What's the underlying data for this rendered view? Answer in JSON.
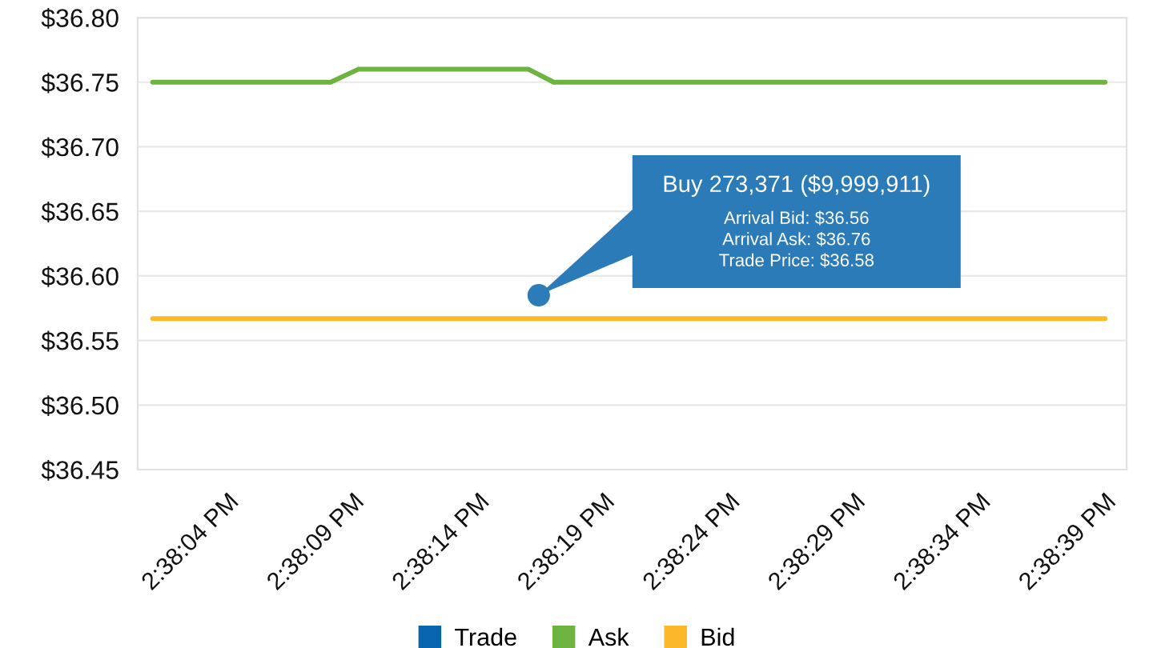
{
  "chart_data": {
    "type": "line",
    "xlim": [
      14.633361,
      14.644322
    ],
    "xticks": [
      {
        "value": 14.634444,
        "label": "2:38:04 PM"
      },
      {
        "value": 14.635833,
        "label": "2:38:09 PM"
      },
      {
        "value": 14.637222,
        "label": "2:38:14 PM"
      },
      {
        "value": 14.638611,
        "label": "2:38:19 PM"
      },
      {
        "value": 14.64,
        "label": "2:38:24 PM"
      },
      {
        "value": 14.641389,
        "label": "2:38:29 PM"
      },
      {
        "value": 14.642778,
        "label": "2:38:34 PM"
      },
      {
        "value": 14.644167,
        "label": "2:38:39 PM"
      }
    ],
    "ylim": [
      36.45,
      36.8
    ],
    "yticks": [
      {
        "value": 36.45,
        "label": "$36.45"
      },
      {
        "value": 36.5,
        "label": "$36.50"
      },
      {
        "value": 36.55,
        "label": "$36.55"
      },
      {
        "value": 36.6,
        "label": "$36.60"
      },
      {
        "value": 36.65,
        "label": "$36.65"
      },
      {
        "value": 36.7,
        "label": "$36.70"
      },
      {
        "value": 36.75,
        "label": "$36.75"
      },
      {
        "value": 36.8,
        "label": "$36.80"
      }
    ],
    "grid": "y",
    "legend": "bottom",
    "line_style": "solid",
    "series": [
      {
        "name": "Trade",
        "type": "scatter",
        "marker": "circle",
        "color": "#0866ae",
        "x": [
          14.637806
        ],
        "values": [
          36.585
        ]
      },
      {
        "name": "Ask",
        "color": "#6cb33f",
        "x": [
          14.633528,
          14.6355,
          14.635806,
          14.637694,
          14.637972,
          14.644083
        ],
        "values": [
          36.75,
          36.75,
          36.76,
          36.76,
          36.75,
          36.75
        ]
      },
      {
        "name": "Bid",
        "color": "#fbb829",
        "x": [
          14.633528,
          14.644083
        ],
        "values": [
          36.567,
          36.567
        ]
      }
    ],
    "annotations": [
      "Buy 273,371 ($9,999,911)\nArrival Bid: $36.56\nArrival Ask: $36.76\nTrade Price: $36.58"
    ]
  }
}
